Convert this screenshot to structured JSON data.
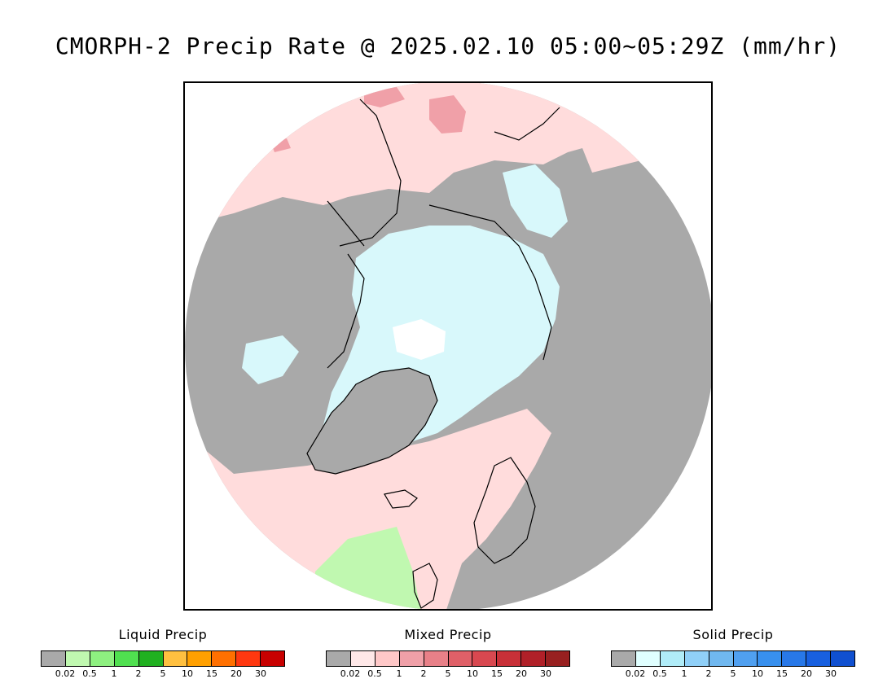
{
  "title": "CMORPH-2 Precip Rate @ 2025.02.10 05:00~05:29Z (mm/hr)",
  "map": {
    "projection": "north-polar-stereographic",
    "colors": {
      "no_precip": "#a9a9a9",
      "mixed_light": "#ffdcdc",
      "mixed_medium": "#f0a0a8",
      "solid_light": "#d8f8fb",
      "solid_white": "#ffffff",
      "liquid_light": "#c0f8b0",
      "coastline": "#000000"
    }
  },
  "legends": [
    {
      "title": "Liquid Precip",
      "colors": [
        "#a9a9a9",
        "#c0f8b0",
        "#8ef080",
        "#50e050",
        "#20b020",
        "#ffc040",
        "#ffa000",
        "#ff7000",
        "#ff3810",
        "#c80000"
      ],
      "ticks": [
        "0.02",
        "0.5",
        "1",
        "2",
        "5",
        "10",
        "15",
        "20",
        "30"
      ]
    },
    {
      "title": "Mixed Precip",
      "colors": [
        "#a9a9a9",
        "#ffe8e8",
        "#ffc8c8",
        "#f0a0a8",
        "#e88088",
        "#e06068",
        "#d84850",
        "#c83038",
        "#b02028",
        "#982020"
      ],
      "ticks": [
        "0.02",
        "0.5",
        "1",
        "2",
        "5",
        "10",
        "15",
        "20",
        "30"
      ]
    },
    {
      "title": "Solid Precip",
      "colors": [
        "#a9a9a9",
        "#e0ffff",
        "#b0ecf8",
        "#90d0f8",
        "#70b8f0",
        "#50a0f0",
        "#3890ee",
        "#2878e8",
        "#1860e0",
        "#1050d0"
      ],
      "ticks": [
        "0.02",
        "0.5",
        "1",
        "2",
        "5",
        "10",
        "15",
        "20",
        "30"
      ]
    }
  ]
}
